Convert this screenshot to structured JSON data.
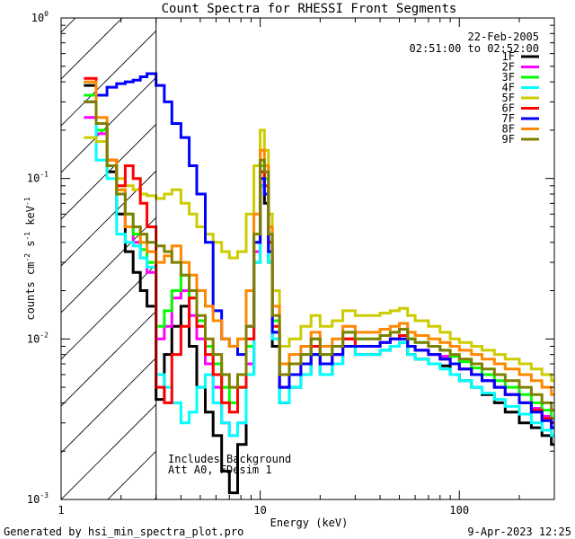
{
  "chart_data": {
    "type": "line",
    "title": "Count Spectra for RHESSI Front Segments",
    "xlabel": "Energy (keV)",
    "ylabel_main": "counts cm",
    "ylabel_exp1": "-2",
    "ylabel_mid": " s",
    "ylabel_exp2": "-1",
    "ylabel_end": " keV",
    "ylabel_exp3": "-1",
    "xscale": "log",
    "yscale": "log",
    "xlim": [
      1,
      300
    ],
    "ylim": [
      0.001,
      1
    ],
    "x_ticks": [
      {
        "value": 1,
        "label": "1"
      },
      {
        "value": 10,
        "label": "10"
      },
      {
        "value": 100,
        "label": "100"
      }
    ],
    "y_ticks": [
      {
        "value": 1,
        "base": "10",
        "exp": "0"
      },
      {
        "value": 0.1,
        "base": "10",
        "exp": "-1"
      },
      {
        "value": 0.01,
        "base": "10",
        "exp": "-2"
      },
      {
        "value": 0.001,
        "base": "10",
        "exp": "-3"
      }
    ],
    "date": "22-Feb-2005",
    "time_range": "02:51:00 to 02:52:00",
    "shaded_region": {
      "x_min": 1,
      "x_max": 3,
      "style": "diagonal hatch"
    },
    "notes": [
      "Includes Background",
      "Att A0, FDesim 1"
    ],
    "legend_position": "top-right",
    "bins": [
      1.3,
      1.5,
      1.7,
      1.9,
      2.1,
      2.3,
      2.5,
      2.7,
      3.0,
      3.3,
      3.6,
      4.0,
      4.4,
      4.8,
      5.3,
      5.8,
      6.4,
      7.0,
      7.7,
      8.5,
      9.3,
      10.0,
      10.5,
      11.0,
      11.5,
      12.5,
      14.0,
      16.0,
      18.0,
      20.0,
      23.0,
      26.0,
      30.0,
      35.0,
      40.0,
      45.0,
      50.0,
      55.0,
      60.0,
      70.0,
      80.0,
      90.0,
      100.0,
      115.0,
      130.0,
      150.0,
      170.0,
      200.0,
      230.0,
      260.0,
      290.0
    ],
    "series": [
      {
        "name": "1F",
        "color": "#000000",
        "values": [
          0.38,
          0.22,
          0.11,
          0.06,
          0.035,
          0.026,
          0.02,
          0.016,
          0.0042,
          0.008,
          0.012,
          0.016,
          0.009,
          0.005,
          0.0035,
          0.0025,
          0.0015,
          0.0011,
          0.0022,
          0.006,
          0.03,
          0.09,
          0.07,
          0.03,
          0.009,
          0.004,
          0.005,
          0.006,
          0.008,
          0.006,
          0.007,
          0.009,
          0.008,
          0.008,
          0.0085,
          0.009,
          0.0095,
          0.008,
          0.0075,
          0.007,
          0.0068,
          0.006,
          0.0055,
          0.005,
          0.0045,
          0.004,
          0.0035,
          0.003,
          0.0028,
          0.0025,
          0.0022
        ]
      },
      {
        "name": "2F",
        "color": "#ff00ff",
        "values": [
          0.24,
          0.19,
          0.12,
          0.08,
          0.05,
          0.04,
          0.032,
          0.026,
          0.01,
          0.012,
          0.018,
          0.02,
          0.014,
          0.01,
          0.007,
          0.005,
          0.003,
          0.0025,
          0.003,
          0.007,
          0.035,
          0.1,
          0.08,
          0.035,
          0.011,
          0.005,
          0.006,
          0.007,
          0.009,
          0.007,
          0.008,
          0.01,
          0.009,
          0.009,
          0.0095,
          0.01,
          0.0105,
          0.009,
          0.0085,
          0.008,
          0.0078,
          0.007,
          0.0065,
          0.006,
          0.0055,
          0.005,
          0.0045,
          0.004,
          0.0037,
          0.0033,
          0.003
        ]
      },
      {
        "name": "3F",
        "color": "#00ff00",
        "values": [
          0.33,
          0.2,
          0.12,
          0.085,
          0.06,
          0.045,
          0.036,
          0.03,
          0.012,
          0.015,
          0.02,
          0.025,
          0.018,
          0.013,
          0.009,
          0.007,
          0.005,
          0.004,
          0.005,
          0.009,
          0.04,
          0.12,
          0.1,
          0.04,
          0.013,
          0.006,
          0.007,
          0.008,
          0.01,
          0.008,
          0.009,
          0.011,
          0.01,
          0.01,
          0.0105,
          0.011,
          0.0115,
          0.01,
          0.0095,
          0.009,
          0.0085,
          0.0078,
          0.0072,
          0.0066,
          0.006,
          0.0055,
          0.005,
          0.0045,
          0.004,
          0.0036,
          0.0032
        ]
      },
      {
        "name": "4F",
        "color": "#00ffff",
        "values": [
          0.3,
          0.13,
          0.1,
          0.045,
          0.04,
          0.038,
          0.032,
          0.028,
          0.006,
          0.005,
          0.004,
          0.003,
          0.0035,
          0.005,
          0.006,
          0.004,
          0.003,
          0.0025,
          0.003,
          0.006,
          0.03,
          0.09,
          0.08,
          0.03,
          0.01,
          0.004,
          0.005,
          0.006,
          0.008,
          0.006,
          0.007,
          0.009,
          0.008,
          0.008,
          0.0085,
          0.009,
          0.0095,
          0.008,
          0.0075,
          0.007,
          0.0065,
          0.006,
          0.0055,
          0.005,
          0.0046,
          0.0042,
          0.0038,
          0.0034,
          0.003,
          0.0027,
          0.0025
        ]
      },
      {
        "name": "5F",
        "color": "#cccc00",
        "values": [
          0.18,
          0.17,
          0.13,
          0.1,
          0.09,
          0.085,
          0.08,
          0.078,
          0.075,
          0.08,
          0.085,
          0.07,
          0.06,
          0.05,
          0.045,
          0.04,
          0.035,
          0.032,
          0.035,
          0.06,
          0.12,
          0.2,
          0.15,
          0.06,
          0.02,
          0.009,
          0.01,
          0.012,
          0.014,
          0.012,
          0.013,
          0.015,
          0.014,
          0.014,
          0.0145,
          0.015,
          0.0155,
          0.014,
          0.013,
          0.012,
          0.011,
          0.01,
          0.0095,
          0.009,
          0.0085,
          0.008,
          0.0075,
          0.007,
          0.0065,
          0.006,
          0.0055
        ]
      },
      {
        "name": "6F",
        "color": "#ff0000",
        "values": [
          0.42,
          0.22,
          0.13,
          0.09,
          0.12,
          0.1,
          0.07,
          0.05,
          0.005,
          0.004,
          0.008,
          0.012,
          0.018,
          0.012,
          0.008,
          0.006,
          0.004,
          0.0035,
          0.005,
          0.01,
          0.04,
          0.11,
          0.09,
          0.04,
          0.012,
          0.005,
          0.006,
          0.007,
          0.009,
          0.007,
          0.008,
          0.01,
          0.009,
          0.009,
          0.0095,
          0.01,
          0.0105,
          0.009,
          0.0085,
          0.008,
          0.0075,
          0.007,
          0.0065,
          0.006,
          0.0055,
          0.005,
          0.0045,
          0.004,
          0.0036,
          0.0032,
          0.0028
        ]
      },
      {
        "name": "7F",
        "color": "#0000ff",
        "values": [
          0.3,
          0.33,
          0.37,
          0.39,
          0.4,
          0.41,
          0.43,
          0.45,
          0.38,
          0.3,
          0.22,
          0.18,
          0.12,
          0.08,
          0.04,
          0.015,
          0.01,
          0.009,
          0.008,
          0.012,
          0.04,
          0.1,
          0.08,
          0.035,
          0.011,
          0.005,
          0.006,
          0.007,
          0.008,
          0.007,
          0.008,
          0.009,
          0.009,
          0.009,
          0.0095,
          0.01,
          0.01,
          0.009,
          0.0085,
          0.008,
          0.0075,
          0.007,
          0.0065,
          0.006,
          0.0055,
          0.005,
          0.0045,
          0.004,
          0.0035,
          0.0031,
          0.0028
        ]
      },
      {
        "name": "8F",
        "color": "#ff8800",
        "values": [
          0.4,
          0.24,
          0.13,
          0.085,
          0.05,
          0.05,
          0.04,
          0.035,
          0.03,
          0.033,
          0.038,
          0.03,
          0.025,
          0.02,
          0.016,
          0.013,
          0.01,
          0.009,
          0.01,
          0.02,
          0.06,
          0.15,
          0.12,
          0.05,
          0.016,
          0.007,
          0.008,
          0.009,
          0.011,
          0.009,
          0.01,
          0.012,
          0.011,
          0.011,
          0.0115,
          0.012,
          0.0125,
          0.011,
          0.0105,
          0.01,
          0.0095,
          0.009,
          0.0085,
          0.008,
          0.0075,
          0.007,
          0.0065,
          0.006,
          0.0055,
          0.005,
          0.0045
        ]
      },
      {
        "name": "9F",
        "color": "#808000",
        "values": [
          0.3,
          0.22,
          0.12,
          0.08,
          0.06,
          0.05,
          0.045,
          0.04,
          0.038,
          0.035,
          0.03,
          0.025,
          0.02,
          0.014,
          0.01,
          0.008,
          0.006,
          0.005,
          0.006,
          0.012,
          0.045,
          0.13,
          0.11,
          0.045,
          0.014,
          0.006,
          0.007,
          0.008,
          0.01,
          0.008,
          0.009,
          0.011,
          0.01,
          0.01,
          0.0105,
          0.011,
          0.0115,
          0.01,
          0.0095,
          0.009,
          0.0085,
          0.008,
          0.0075,
          0.007,
          0.0065,
          0.006,
          0.0055,
          0.005,
          0.0045,
          0.004,
          0.0036
        ]
      }
    ]
  },
  "footer": {
    "left": "Generated by hsi_min_spectra_plot.pro",
    "right": "9-Apr-2023 12:25"
  }
}
